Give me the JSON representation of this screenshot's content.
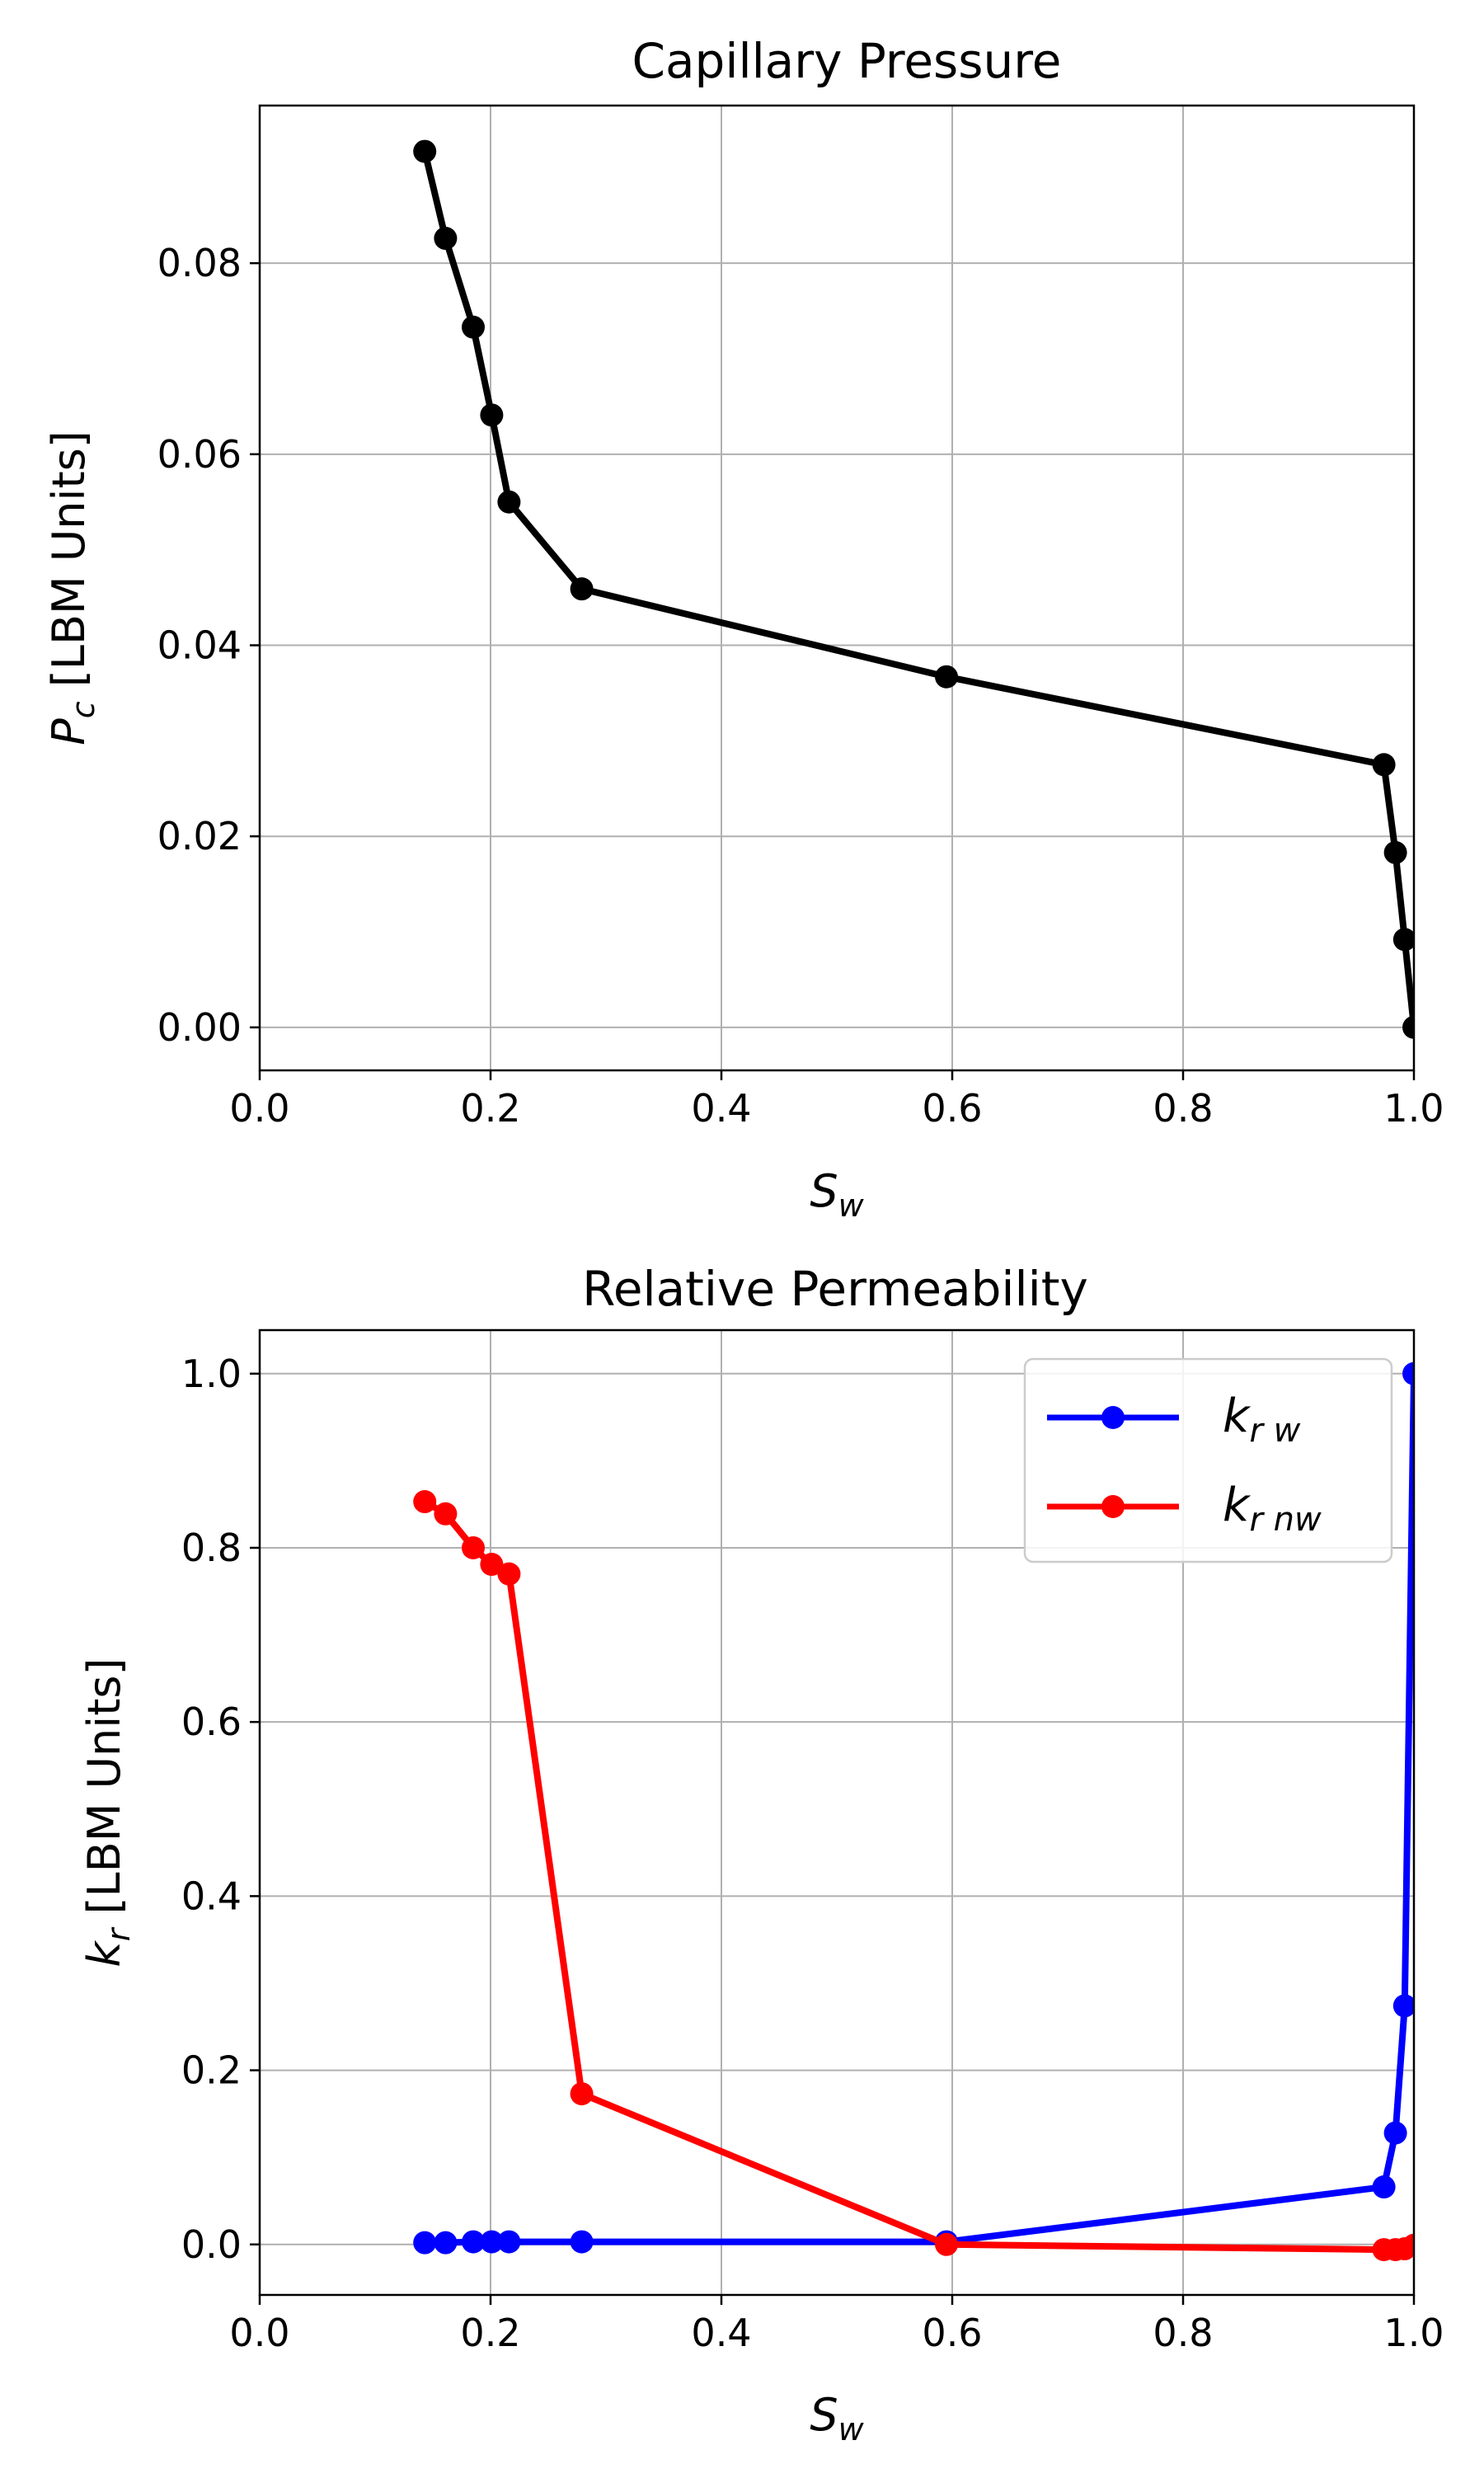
{
  "chart_data": [
    {
      "type": "line",
      "title": "Capillary Pressure",
      "xlabel": "S_w",
      "ylabel": "P_c [LBM Units]",
      "xlim": [
        0.0,
        1.0
      ],
      "ylim": [
        -0.0045,
        0.0965
      ],
      "xticks": [
        "0.0",
        "0.2",
        "0.4",
        "0.6",
        "0.8",
        "1.0"
      ],
      "yticks": [
        "0.00",
        "0.02",
        "0.04",
        "0.06",
        "0.08"
      ],
      "grid": true,
      "series": [
        {
          "color": "#000000",
          "marker": "circle",
          "x": [
            0.143,
            0.161,
            0.185,
            0.201,
            0.216,
            0.279,
            0.595,
            0.974,
            0.984,
            0.992,
            1.0
          ],
          "y": [
            0.0917,
            0.0826,
            0.0733,
            0.0641,
            0.055,
            0.0459,
            0.0367,
            0.0275,
            0.0183,
            0.0092,
            0.0
          ]
        }
      ]
    },
    {
      "type": "line",
      "title": "Relative Permeability",
      "xlabel": "S_w",
      "ylabel": "k_r [LBM Units]",
      "xlim": [
        0.0,
        1.0
      ],
      "ylim": [
        -0.058,
        1.05
      ],
      "xticks": [
        "0.0",
        "0.2",
        "0.4",
        "0.6",
        "0.8",
        "1.0"
      ],
      "yticks": [
        "0.0",
        "0.2",
        "0.4",
        "0.6",
        "0.8",
        "1.0"
      ],
      "grid": true,
      "legend": "top-right",
      "series": [
        {
          "name": "k_r w",
          "color": "#0000ff",
          "marker": "circle",
          "x": [
            0.143,
            0.161,
            0.185,
            0.201,
            0.216,
            0.279,
            0.595,
            0.974,
            0.984,
            0.992,
            1.0
          ],
          "y": [
            0.002,
            0.002,
            0.003,
            0.003,
            0.003,
            0.003,
            0.003,
            0.066,
            0.128,
            0.274,
            1.0
          ]
        },
        {
          "name": "k_r nw",
          "color": "#ff0000",
          "marker": "circle",
          "x": [
            0.143,
            0.161,
            0.185,
            0.201,
            0.216,
            0.279,
            0.595,
            0.974,
            0.984,
            0.992,
            1.0
          ],
          "y": [
            0.853,
            0.839,
            0.8,
            0.781,
            0.77,
            0.173,
            0.0,
            -0.006,
            -0.006,
            -0.005,
            -0.001
          ]
        }
      ]
    }
  ],
  "labels": {
    "top_title": "Capillary Pressure",
    "top_xlabel_main": "S",
    "top_xlabel_sub": "w",
    "top_ylabel_main": "P",
    "top_ylabel_sub": "c",
    "top_ylabel_rest": " [LBM Units]",
    "bottom_title": "Relative Permeability",
    "bottom_xlabel_main": "S",
    "bottom_xlabel_sub": "w",
    "bottom_ylabel_main": "k",
    "bottom_ylabel_sub": "r",
    "bottom_ylabel_rest": " [LBM Units]",
    "legend_main": "k",
    "legend_w_sub": "r w",
    "legend_nw_sub": "r nw"
  }
}
